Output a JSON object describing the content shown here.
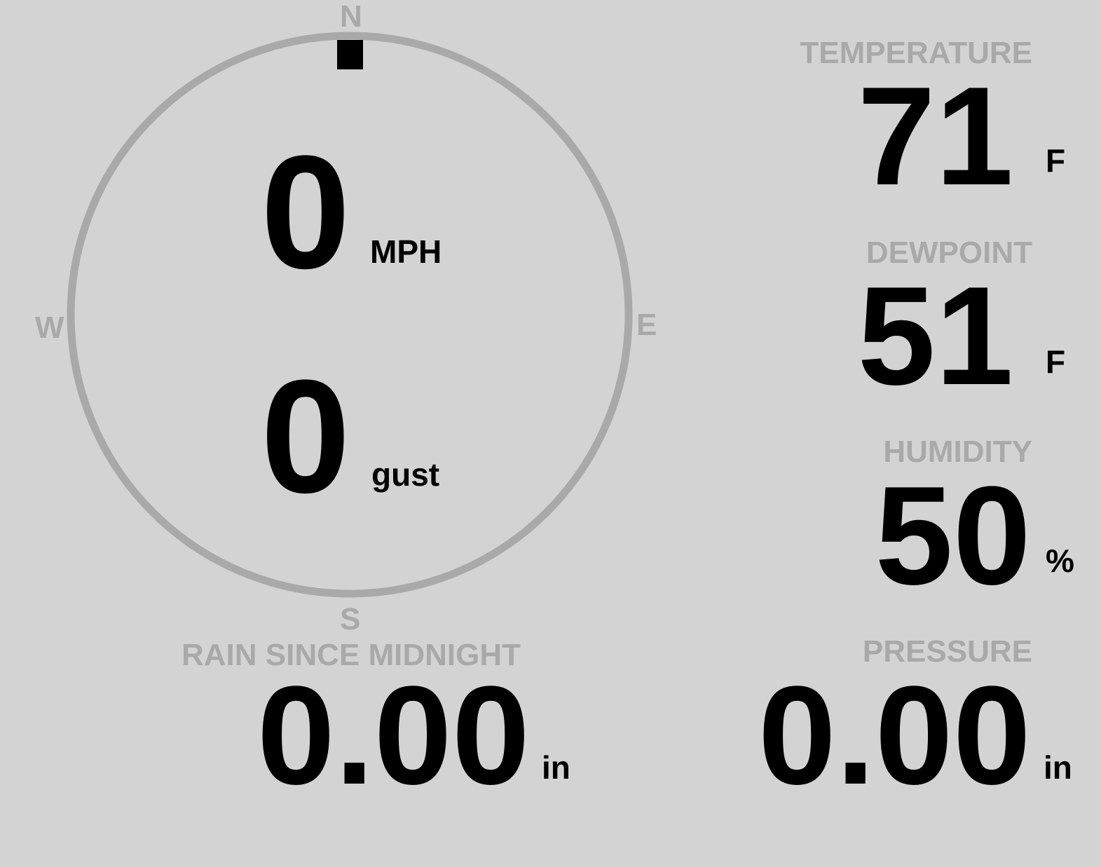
{
  "wind": {
    "speed": "0",
    "speed_unit": "MPH",
    "gust": "0",
    "gust_unit": "gust",
    "direction_degrees": 0,
    "compass": {
      "n": "N",
      "e": "E",
      "s": "S",
      "w": "W"
    }
  },
  "temperature": {
    "label": "TEMPERATURE",
    "value": "71",
    "unit": "F"
  },
  "dewpoint": {
    "label": "DEWPOINT",
    "value": "51",
    "unit": "F"
  },
  "humidity": {
    "label": "HUMIDITY",
    "value": "50",
    "unit": "%"
  },
  "rain": {
    "label": "RAIN SINCE MIDNIGHT",
    "value": "0.00",
    "unit": "in"
  },
  "pressure": {
    "label": "PRESSURE",
    "value": "0.00",
    "unit": "in"
  },
  "colors": {
    "background": "#d3d3d3",
    "label": "#a9a9a9",
    "value": "#000000"
  }
}
